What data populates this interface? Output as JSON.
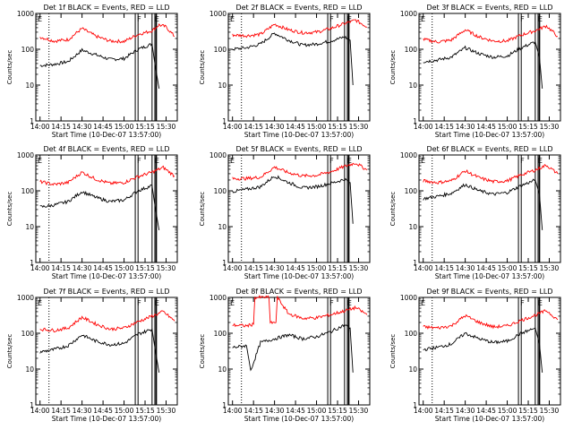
{
  "chart_data": [
    {
      "type": "line",
      "title": "Det 1f BLACK = Events, RED = LLD",
      "ylabel": "Counts/sec",
      "xlabel": "Start Time (10-Dec-07 13:57:00)",
      "x_ticks": [
        "14:00",
        "14:15",
        "14:30",
        "14:45",
        "15:00",
        "15:15",
        "15:30"
      ],
      "y_ticks": [
        "1",
        "10",
        "100",
        "1000"
      ],
      "y_scale": "log",
      "ylim": [
        1,
        1000
      ],
      "xlim": [
        "13:57",
        "15:38"
      ],
      "markers": [
        "F",
        "E"
      ],
      "series": [
        {
          "color": "#000000",
          "x": [
            "14:00",
            "14:10",
            "14:20",
            "14:30",
            "14:40",
            "14:50",
            "15:00",
            "15:10",
            "15:20",
            "15:22",
            "15:25"
          ],
          "values": [
            35,
            38,
            45,
            95,
            70,
            52,
            55,
            100,
            140,
            40,
            8
          ]
        },
        {
          "color": "#ff0000",
          "x": [
            "14:00",
            "14:10",
            "14:20",
            "14:30",
            "14:40",
            "14:50",
            "15:00",
            "15:10",
            "15:20",
            "15:25",
            "15:30",
            "15:36"
          ],
          "values": [
            220,
            170,
            185,
            380,
            230,
            170,
            165,
            260,
            330,
            480,
            420,
            230
          ]
        }
      ]
    },
    {
      "type": "line",
      "title": "Det 2f BLACK = Events, RED = LLD",
      "ylabel": "Counts/sec",
      "xlabel": "Start Time (10-Dec-07 13:57:00)",
      "x_ticks": [
        "14:00",
        "14:15",
        "14:30",
        "14:45",
        "15:00",
        "15:15",
        "15:30"
      ],
      "y_ticks": [
        "1",
        "10",
        "100",
        "1000"
      ],
      "y_scale": "log",
      "ylim": [
        1,
        1000
      ],
      "xlim": [
        "13:57",
        "15:38"
      ],
      "markers": [
        "F",
        "E"
      ],
      "series": [
        {
          "color": "#000000",
          "x": [
            "14:00",
            "14:10",
            "14:20",
            "14:30",
            "14:40",
            "14:50",
            "15:00",
            "15:10",
            "15:20",
            "15:24",
            "15:26"
          ],
          "values": [
            100,
            110,
            140,
            280,
            180,
            130,
            140,
            170,
            220,
            180,
            10
          ]
        },
        {
          "color": "#ff0000",
          "x": [
            "14:00",
            "14:10",
            "14:20",
            "14:30",
            "14:40",
            "14:50",
            "15:00",
            "15:10",
            "15:20",
            "15:28",
            "15:36"
          ],
          "values": [
            250,
            240,
            260,
            500,
            350,
            290,
            300,
            380,
            520,
            650,
            420
          ]
        }
      ]
    },
    {
      "type": "line",
      "title": "Det 3f BLACK = Events, RED = LLD",
      "ylabel": "Counts/sec",
      "xlabel": "Start Time (10-Dec-07 13:57:00)",
      "x_ticks": [
        "14:00",
        "14:15",
        "14:30",
        "14:45",
        "15:00",
        "15:15",
        "15:30"
      ],
      "y_ticks": [
        "1",
        "10",
        "100",
        "1000"
      ],
      "y_scale": "log",
      "ylim": [
        1,
        1000
      ],
      "xlim": [
        "13:57",
        "15:38"
      ],
      "markers": [
        "F",
        "E"
      ],
      "series": [
        {
          "color": "#000000",
          "x": [
            "14:00",
            "14:10",
            "14:20",
            "14:30",
            "14:40",
            "14:50",
            "15:00",
            "15:10",
            "15:20",
            "15:23",
            "15:25"
          ],
          "values": [
            45,
            50,
            60,
            110,
            75,
            60,
            65,
            110,
            160,
            60,
            8
          ]
        },
        {
          "color": "#ff0000",
          "x": [
            "14:00",
            "14:10",
            "14:20",
            "14:30",
            "14:40",
            "14:50",
            "15:00",
            "15:10",
            "15:20",
            "15:28",
            "15:36"
          ],
          "values": [
            190,
            160,
            180,
            350,
            220,
            170,
            170,
            250,
            330,
            450,
            230
          ]
        }
      ]
    },
    {
      "type": "line",
      "title": "Det 4f BLACK = Events, RED = LLD",
      "ylabel": "Counts/sec",
      "xlabel": "Start Time (10-Dec-07 13:57:00)",
      "x_ticks": [
        "14:00",
        "14:15",
        "14:30",
        "14:45",
        "15:00",
        "15:15",
        "15:30"
      ],
      "y_ticks": [
        "1",
        "10",
        "100",
        "1000"
      ],
      "y_scale": "log",
      "ylim": [
        1,
        1000
      ],
      "xlim": [
        "13:57",
        "15:38"
      ],
      "markers": [
        "F",
        "E"
      ],
      "series": [
        {
          "color": "#000000",
          "x": [
            "14:00",
            "14:10",
            "14:20",
            "14:30",
            "14:40",
            "14:50",
            "15:00",
            "15:10",
            "15:20",
            "15:22",
            "15:25"
          ],
          "values": [
            35,
            40,
            50,
            95,
            65,
            50,
            55,
            100,
            140,
            40,
            8
          ]
        },
        {
          "color": "#ff0000",
          "x": [
            "14:00",
            "14:10",
            "14:20",
            "14:30",
            "14:40",
            "14:50",
            "15:00",
            "15:10",
            "15:20",
            "15:28",
            "15:36"
          ],
          "values": [
            180,
            150,
            170,
            330,
            210,
            160,
            170,
            250,
            330,
            450,
            260
          ]
        }
      ]
    },
    {
      "type": "line",
      "title": "Det 5f BLACK = Events, RED = LLD",
      "ylabel": "Counts/sec",
      "xlabel": "Start Time (10-Dec-07 13:57:00)",
      "x_ticks": [
        "14:00",
        "14:15",
        "14:30",
        "14:45",
        "15:00",
        "15:15",
        "15:30"
      ],
      "y_ticks": [
        "1",
        "10",
        "100",
        "1000"
      ],
      "y_scale": "log",
      "ylim": [
        1,
        1000
      ],
      "xlim": [
        "13:57",
        "15:38"
      ],
      "markers": [
        "F",
        "E"
      ],
      "series": [
        {
          "color": "#000000",
          "x": [
            "14:00",
            "14:10",
            "14:20",
            "14:30",
            "14:40",
            "14:50",
            "15:00",
            "15:10",
            "15:20",
            "15:24",
            "15:26"
          ],
          "values": [
            95,
            110,
            130,
            260,
            170,
            120,
            130,
            160,
            210,
            170,
            12
          ]
        },
        {
          "color": "#ff0000",
          "x": [
            "14:00",
            "14:10",
            "14:20",
            "14:30",
            "14:40",
            "14:50",
            "15:00",
            "15:10",
            "15:20",
            "15:28",
            "15:36"
          ],
          "values": [
            220,
            220,
            240,
            460,
            320,
            260,
            270,
            340,
            480,
            600,
            380
          ]
        }
      ]
    },
    {
      "type": "line",
      "title": "Det 6f BLACK = Events, RED = LLD",
      "ylabel": "Counts/sec",
      "xlabel": "Start Time (10-Dec-07 13:57:00)",
      "x_ticks": [
        "14:00",
        "14:15",
        "14:30",
        "14:45",
        "15:00",
        "15:15",
        "15:30"
      ],
      "y_ticks": [
        "1",
        "10",
        "100",
        "1000"
      ],
      "y_scale": "log",
      "ylim": [
        1,
        1000
      ],
      "xlim": [
        "13:57",
        "15:38"
      ],
      "markers": [
        "F",
        "E"
      ],
      "series": [
        {
          "color": "#000000",
          "x": [
            "14:00",
            "14:10",
            "14:20",
            "14:30",
            "14:40",
            "14:50",
            "15:00",
            "15:10",
            "15:20",
            "15:23",
            "15:25"
          ],
          "values": [
            60,
            70,
            85,
            150,
            100,
            80,
            90,
            140,
            200,
            80,
            8
          ]
        },
        {
          "color": "#ff0000",
          "x": [
            "14:00",
            "14:10",
            "14:20",
            "14:30",
            "14:40",
            "14:50",
            "15:00",
            "15:10",
            "15:20",
            "15:28",
            "15:36"
          ],
          "values": [
            190,
            170,
            190,
            360,
            230,
            180,
            190,
            280,
            380,
            520,
            300
          ]
        }
      ]
    },
    {
      "type": "line",
      "title": "Det 7f BLACK = Events, RED = LLD",
      "ylabel": "Counts/sec",
      "xlabel": "Start Time (10-Dec-07 13:57:00)",
      "x_ticks": [
        "14:00",
        "14:15",
        "14:30",
        "14:45",
        "15:00",
        "15:15",
        "15:30"
      ],
      "y_ticks": [
        "1",
        "10",
        "100",
        "1000"
      ],
      "y_scale": "log",
      "ylim": [
        1,
        1000
      ],
      "xlim": [
        "13:57",
        "15:38"
      ],
      "markers": [
        "F",
        "E"
      ],
      "series": [
        {
          "color": "#000000",
          "x": [
            "14:00",
            "14:10",
            "14:20",
            "14:30",
            "14:40",
            "14:50",
            "15:00",
            "15:10",
            "15:20",
            "15:22",
            "15:25"
          ],
          "values": [
            30,
            35,
            45,
            90,
            60,
            48,
            52,
            95,
            130,
            40,
            8
          ]
        },
        {
          "color": "#ff0000",
          "x": [
            "14:00",
            "14:10",
            "14:20",
            "14:30",
            "14:40",
            "14:50",
            "15:00",
            "15:10",
            "15:20",
            "15:28",
            "15:36"
          ],
          "values": [
            130,
            120,
            140,
            280,
            180,
            130,
            140,
            210,
            300,
            400,
            220
          ]
        }
      ]
    },
    {
      "type": "line",
      "title": "Det 8f BLACK = Events, RED = LLD",
      "ylabel": "Counts/sec",
      "xlabel": "Start Time (10-Dec-07 13:57:00)",
      "x_ticks": [
        "14:00",
        "14:15",
        "14:30",
        "14:45",
        "15:00",
        "15:15",
        "15:30"
      ],
      "y_ticks": [
        "1",
        "10",
        "100",
        "1000"
      ],
      "y_scale": "log",
      "ylim": [
        1,
        1000
      ],
      "xlim": [
        "13:57",
        "15:38"
      ],
      "markers": [
        "F",
        "E"
      ],
      "series": [
        {
          "color": "#000000",
          "x": [
            "14:00",
            "14:10",
            "14:13",
            "14:20",
            "14:30",
            "14:40",
            "14:50",
            "15:00",
            "15:10",
            "15:20",
            "15:24",
            "15:26"
          ],
          "values": [
            40,
            45,
            9,
            55,
            70,
            90,
            70,
            80,
            110,
            170,
            140,
            8
          ]
        },
        {
          "color": "#ff0000",
          "x": [
            "14:00",
            "14:10",
            "14:15",
            "14:16",
            "14:26",
            "14:27",
            "14:31",
            "14:32",
            "14:40",
            "14:50",
            "15:00",
            "15:10",
            "15:20",
            "15:28",
            "15:36"
          ],
          "values": [
            170,
            160,
            180,
            1000,
            1000,
            200,
            200,
            1000,
            350,
            260,
            270,
            330,
            420,
            520,
            330
          ]
        }
      ]
    },
    {
      "type": "line",
      "title": "Det 9f BLACK = Events, RED = LLD",
      "ylabel": "Counts/sec",
      "xlabel": "Start Time (10-Dec-07 13:57:00)",
      "x_ticks": [
        "14:00",
        "14:15",
        "14:30",
        "14:45",
        "15:00",
        "15:15",
        "15:30"
      ],
      "y_ticks": [
        "1",
        "10",
        "100",
        "1000"
      ],
      "y_scale": "log",
      "ylim": [
        1,
        1000
      ],
      "xlim": [
        "13:57",
        "15:38"
      ],
      "markers": [
        "F",
        "E"
      ],
      "series": [
        {
          "color": "#000000",
          "x": [
            "14:00",
            "14:10",
            "14:20",
            "14:30",
            "14:40",
            "14:50",
            "15:00",
            "15:10",
            "15:20",
            "15:23",
            "15:25"
          ],
          "values": [
            35,
            40,
            50,
            100,
            70,
            55,
            60,
            100,
            140,
            50,
            8
          ]
        },
        {
          "color": "#ff0000",
          "x": [
            "14:00",
            "14:10",
            "14:20",
            "14:30",
            "14:40",
            "14:50",
            "15:00",
            "15:10",
            "15:20",
            "15:28",
            "15:36"
          ],
          "values": [
            150,
            140,
            160,
            310,
            200,
            150,
            160,
            230,
            320,
            430,
            240
          ]
        }
      ]
    }
  ]
}
